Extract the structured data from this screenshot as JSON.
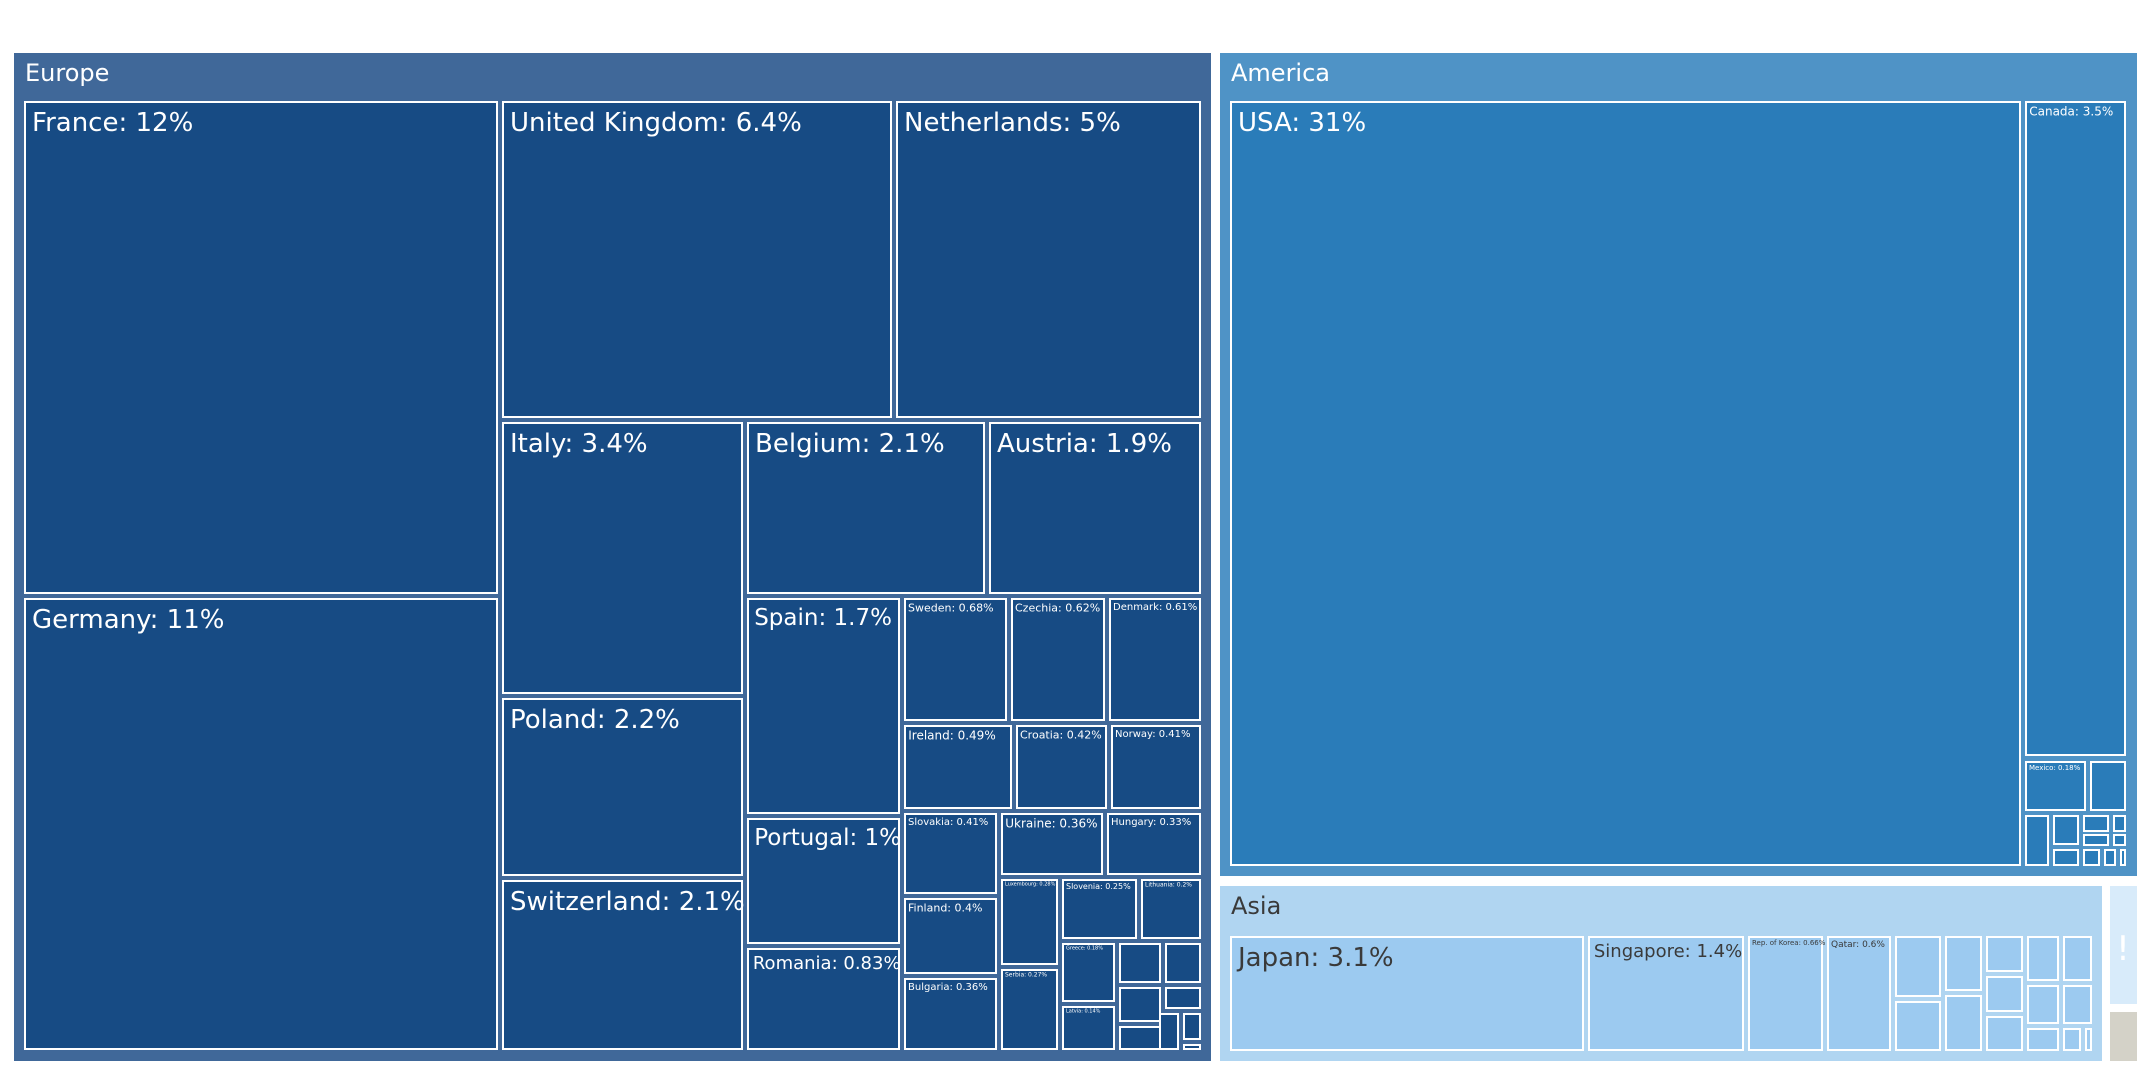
{
  "chart_data": {
    "type": "treemap",
    "colors": {
      "europe_bg": "#406899",
      "europe_tile": "#174b84",
      "america_bg": "#4f93c6",
      "america_tile": "#2a7cb9",
      "asia_bg": "#b0d5f1",
      "asia_tile": "#9ccaf0",
      "other_bg": "#d8ebfa",
      "gray_bg": "#d4d2c8",
      "border": "#ffffff"
    },
    "groups": [
      {
        "name": "Europe",
        "items": [
          {
            "name": "France",
            "value": 12,
            "label": "France: 12%"
          },
          {
            "name": "Germany",
            "value": 11,
            "label": "Germany: 11%"
          },
          {
            "name": "United Kingdom",
            "value": 6.4,
            "label": "United Kingdom: 6.4%"
          },
          {
            "name": "Netherlands",
            "value": 5,
            "label": "Netherlands: 5%"
          },
          {
            "name": "Italy",
            "value": 3.4,
            "label": "Italy: 3.4%"
          },
          {
            "name": "Belgium",
            "value": 2.1,
            "label": "Belgium: 2.1%"
          },
          {
            "name": "Austria",
            "value": 1.9,
            "label": "Austria: 1.9%"
          },
          {
            "name": "Poland",
            "value": 2.2,
            "label": "Poland: 2.2%"
          },
          {
            "name": "Switzerland",
            "value": 2.1,
            "label": "Switzerland: 2.1%"
          },
          {
            "name": "Spain",
            "value": 1.7,
            "label": "Spain: 1.7%"
          },
          {
            "name": "Portugal",
            "value": 1,
            "label": "Portugal: 1%"
          },
          {
            "name": "Romania",
            "value": 0.83,
            "label": "Romania: 0.83%"
          },
          {
            "name": "Sweden",
            "value": 0.68,
            "label": "Sweden: 0.68%"
          },
          {
            "name": "Czechia",
            "value": 0.62,
            "label": "Czechia: 0.62%"
          },
          {
            "name": "Denmark",
            "value": 0.61,
            "label": "Denmark: 0.61%"
          },
          {
            "name": "Ireland",
            "value": 0.49,
            "label": "Ireland: 0.49%"
          },
          {
            "name": "Croatia",
            "value": 0.42,
            "label": "Croatia: 0.42%"
          },
          {
            "name": "Norway",
            "value": 0.41,
            "label": "Norway: 0.41%"
          },
          {
            "name": "Slovakia",
            "value": 0.41,
            "label": "Slovakia: 0.41%"
          },
          {
            "name": "Ukraine",
            "value": 0.36,
            "label": "Ukraine: 0.36%"
          },
          {
            "name": "Hungary",
            "value": 0.33,
            "label": "Hungary: 0.33%"
          },
          {
            "name": "Finland",
            "value": 0.4,
            "label": "Finland: 0.4%"
          },
          {
            "name": "Bulgaria",
            "value": 0.36,
            "label": "Bulgaria: 0.36%"
          },
          {
            "name": "Luxembourg",
            "value": 0.28,
            "label": "Luxembourg: 0.28%"
          },
          {
            "name": "Slovenia",
            "value": 0.25,
            "label": "Slovenia: 0.25%"
          },
          {
            "name": "Lithuania",
            "value": 0.2,
            "label": "Lithuania: 0.2%"
          },
          {
            "name": "Serbia",
            "value": 0.27,
            "label": "Serbia: 0.27%"
          },
          {
            "name": "Greece",
            "value": 0.18,
            "label": "Greece: 0.18%"
          },
          {
            "name": "Latvia",
            "value": 0.14,
            "label": "Latvia: 0.14%"
          },
          {
            "name": "",
            "value": null,
            "label": ""
          },
          {
            "name": "",
            "value": null,
            "label": ""
          },
          {
            "name": "",
            "value": null,
            "label": ""
          },
          {
            "name": "",
            "value": null,
            "label": ""
          },
          {
            "name": "",
            "value": null,
            "label": ""
          },
          {
            "name": "",
            "value": null,
            "label": ""
          },
          {
            "name": "",
            "value": null,
            "label": ""
          },
          {
            "name": "",
            "value": null,
            "label": ""
          }
        ]
      },
      {
        "name": "America",
        "items": [
          {
            "name": "USA",
            "value": 31,
            "label": "USA: 31%"
          },
          {
            "name": "Canada",
            "value": 3.5,
            "label": "Canada: 3.5%"
          },
          {
            "name": "Mexico",
            "value": 0.18,
            "label": "Mexico: 0.18%"
          },
          {
            "name": "",
            "value": null,
            "label": ""
          },
          {
            "name": "",
            "value": null,
            "label": ""
          },
          {
            "name": "",
            "value": null,
            "label": ""
          },
          {
            "name": "",
            "value": null,
            "label": ""
          },
          {
            "name": "",
            "value": null,
            "label": ""
          },
          {
            "name": "",
            "value": null,
            "label": ""
          },
          {
            "name": "",
            "value": null,
            "label": ""
          },
          {
            "name": "",
            "value": null,
            "label": ""
          },
          {
            "name": "",
            "value": null,
            "label": ""
          },
          {
            "name": "",
            "value": null,
            "label": ""
          },
          {
            "name": "",
            "value": null,
            "label": ""
          }
        ]
      },
      {
        "name": "Asia",
        "items": [
          {
            "name": "Japan",
            "value": 3.1,
            "label": "Japan: 3.1%"
          },
          {
            "name": "Singapore",
            "value": 1.4,
            "label": "Singapore: 1.4%"
          },
          {
            "name": "Rep. of Korea",
            "value": 0.66,
            "label": "Rep. of Korea: 0.66%"
          },
          {
            "name": "Qatar",
            "value": 0.6,
            "label": "Qatar: 0.6%"
          },
          {
            "name": "",
            "value": null,
            "label": ""
          },
          {
            "name": "",
            "value": null,
            "label": ""
          },
          {
            "name": "",
            "value": null,
            "label": ""
          },
          {
            "name": "",
            "value": null,
            "label": ""
          },
          {
            "name": "",
            "value": null,
            "label": ""
          },
          {
            "name": "",
            "value": null,
            "label": ""
          },
          {
            "name": "",
            "value": null,
            "label": ""
          },
          {
            "name": "",
            "value": null,
            "label": ""
          },
          {
            "name": "",
            "value": null,
            "label": ""
          },
          {
            "name": "",
            "value": null,
            "label": ""
          },
          {
            "name": "",
            "value": null,
            "label": ""
          },
          {
            "name": "",
            "value": null,
            "label": ""
          },
          {
            "name": "",
            "value": null,
            "label": ""
          },
          {
            "name": "",
            "value": null,
            "label": ""
          },
          {
            "name": "",
            "value": null,
            "label": ""
          }
        ]
      },
      {
        "name": "",
        "items": []
      },
      {
        "name": "",
        "items": []
      }
    ]
  }
}
